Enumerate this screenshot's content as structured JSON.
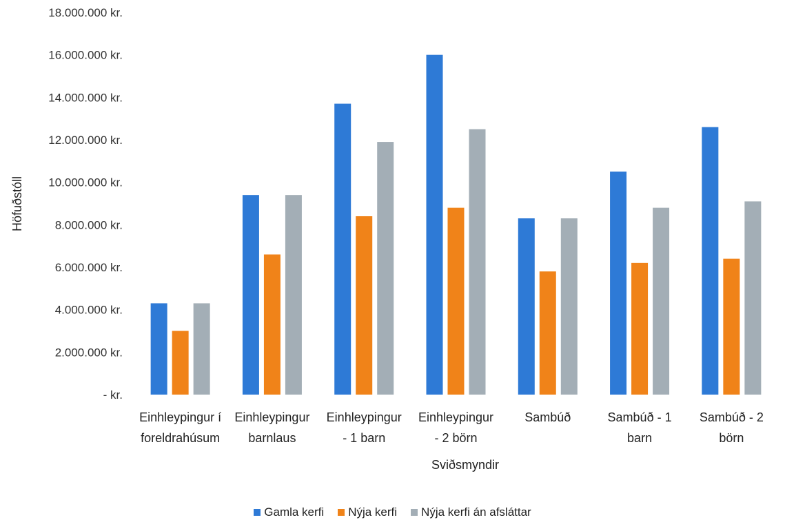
{
  "chart_data": {
    "type": "bar",
    "xlabel": "Sviðsmyndir",
    "ylabel": "Höfuðstóll",
    "ylim": [
      0,
      18000000
    ],
    "yticks": [
      0,
      2000000,
      4000000,
      6000000,
      8000000,
      10000000,
      12000000,
      14000000,
      16000000,
      18000000
    ],
    "ytick_labels": [
      "-  kr.",
      "2.000.000 kr.",
      "4.000.000 kr.",
      "6.000.000 kr.",
      "8.000.000 kr.",
      "10.000.000 kr.",
      "12.000.000 kr.",
      "14.000.000 kr.",
      "16.000.000 kr.",
      "18.000.000 kr."
    ],
    "categories": [
      [
        "Einhleypingur í",
        "foreldrahúsum"
      ],
      [
        "Einhleypingur",
        "barnlaus"
      ],
      [
        "Einhleypingur",
        "- 1 barn"
      ],
      [
        "Einhleypingur",
        "- 2 börn"
      ],
      [
        "Sambúð"
      ],
      [
        "Sambúð - 1",
        "barn"
      ],
      [
        "Sambúð - 2",
        "börn"
      ]
    ],
    "series": [
      {
        "name": "Gamla kerfi",
        "color": "#2E7AD6",
        "values": [
          4300000,
          9400000,
          13700000,
          16000000,
          8300000,
          10500000,
          12600000
        ]
      },
      {
        "name": "Nýja kerfi",
        "color": "#F08319",
        "values": [
          3000000,
          6600000,
          8400000,
          8800000,
          5800000,
          6200000,
          6400000
        ]
      },
      {
        "name": "Nýja kerfi án afsláttar",
        "color": "#A3AEB6",
        "values": [
          4300000,
          9400000,
          11900000,
          12500000,
          8300000,
          8800000,
          9100000
        ]
      }
    ],
    "grid": false,
    "legend_position": "bottom"
  }
}
